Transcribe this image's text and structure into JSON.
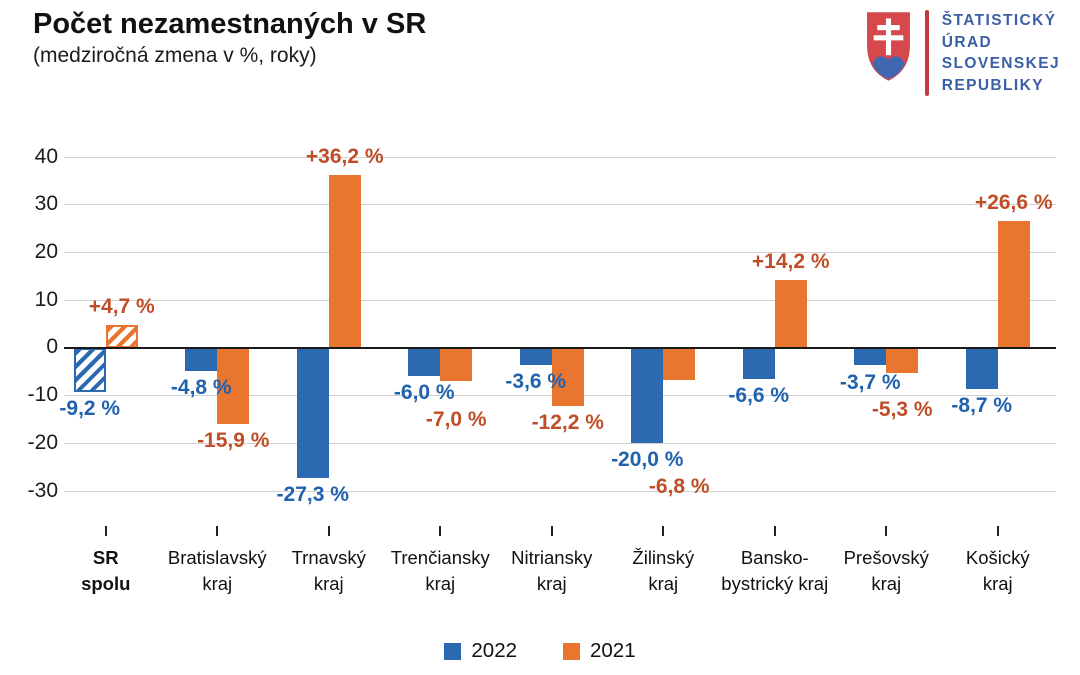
{
  "logo": {
    "org_lines": [
      "ŠTATISTICKÝ",
      "ÚRAD",
      "SLOVENSKEJ",
      "REPUBLIKY"
    ],
    "text_color": "#3b5fa5",
    "divider_color": "#c4373f",
    "shield_red": "#d5494d",
    "shield_blue": "#4068b0",
    "shield_white": "#ffffff"
  },
  "chart_data": {
    "type": "bar",
    "title": "Počet nezamestnaných v SR",
    "subtitle": "(medziročná zmena v %, roky)",
    "categories": [
      {
        "lines": [
          "SR",
          "spolu"
        ],
        "bold": true,
        "hatched": true
      },
      {
        "lines": [
          "Bratislavský",
          "kraj"
        ],
        "bold": false,
        "hatched": false
      },
      {
        "lines": [
          "Trnavský",
          "kraj"
        ],
        "bold": false,
        "hatched": false
      },
      {
        "lines": [
          "Trenčiansky",
          "kraj"
        ],
        "bold": false,
        "hatched": false
      },
      {
        "lines": [
          "Nitriansky",
          "kraj"
        ],
        "bold": false,
        "hatched": false
      },
      {
        "lines": [
          "Žilinský",
          "kraj"
        ],
        "bold": false,
        "hatched": false
      },
      {
        "lines": [
          "Bansko-",
          "bystrický kraj"
        ],
        "bold": false,
        "hatched": false
      },
      {
        "lines": [
          "Prešovský",
          "kraj"
        ],
        "bold": false,
        "hatched": false
      },
      {
        "lines": [
          "Košický",
          "kraj"
        ],
        "bold": false,
        "hatched": false
      }
    ],
    "series": [
      {
        "name": "2022",
        "color": "#2b6ab1",
        "label_color": "#2062ae",
        "values": [
          -9.2,
          -4.8,
          -27.3,
          -6.0,
          -3.6,
          -20.0,
          -6.6,
          -3.7,
          -8.7
        ],
        "labels": [
          "-9,2 %",
          "-4,8 %",
          "-27,3 %",
          "-6,0 %",
          "-3,6 %",
          "-20,0 %",
          "-6,6 %",
          "-3,7 %",
          "-8,7 %"
        ]
      },
      {
        "name": "2021",
        "color": "#e8762f",
        "label_color": "#bf4e28",
        "values": [
          4.7,
          -15.9,
          36.2,
          -7.0,
          -12.2,
          -6.8,
          14.2,
          -5.3,
          26.6
        ],
        "labels": [
          "+4,7 %",
          "-15,9 %",
          "+36,2 %",
          "-7,0 %",
          "-12,2 %",
          "-6,8 %",
          "+14,2 %",
          "-5,3 %",
          "+26,6 %"
        ]
      }
    ],
    "yticks": [
      40,
      30,
      20,
      10,
      0,
      -10,
      -20,
      -30
    ],
    "ylim": [
      -30,
      40
    ],
    "grid": true,
    "legend_position": "bottom"
  }
}
